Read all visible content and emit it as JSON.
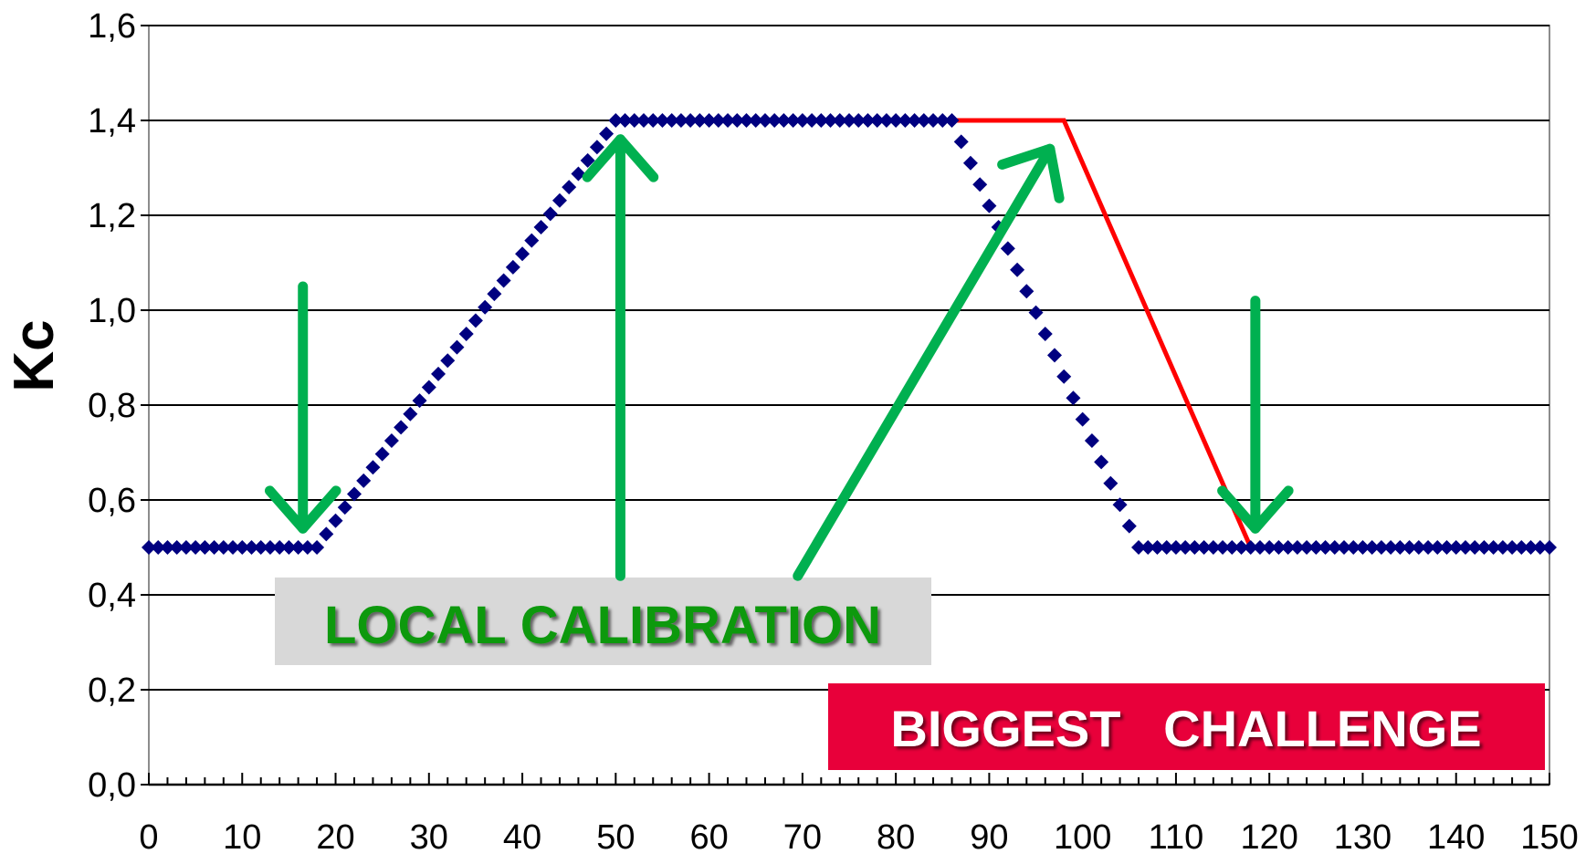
{
  "chart_data": {
    "type": "line",
    "ylabel": "Kc",
    "xlabel": "",
    "title": "",
    "xlim": [
      0,
      150
    ],
    "ylim": [
      0,
      1.6
    ],
    "x_ticks": [
      0,
      10,
      20,
      30,
      40,
      50,
      60,
      70,
      80,
      90,
      100,
      110,
      120,
      130,
      140,
      150
    ],
    "x_tick_labels": [
      "0",
      "10",
      "20",
      "30",
      "40",
      "50",
      "60",
      "70",
      "80",
      "90",
      "100",
      "110",
      "120",
      "130",
      "140",
      "150"
    ],
    "y_ticks": [
      0,
      0.2,
      0.4,
      0.6,
      0.8,
      1.0,
      1.2,
      1.4,
      1.6
    ],
    "y_tick_labels": [
      "0,0",
      "0,2",
      "0,4",
      "0,6",
      "0,8",
      "1,0",
      "1,2",
      "1,4",
      "1,6"
    ],
    "grid": "horizontal",
    "series": [
      {
        "style": "dotted-markers",
        "color": "#000080",
        "x": [
          0,
          18,
          50,
          86,
          106,
          150
        ],
        "y": [
          0.5,
          0.5,
          1.4,
          1.4,
          0.5,
          0.5
        ]
      },
      {
        "style": "solid-line",
        "color": "#ff0000",
        "x": [
          86,
          98,
          118
        ],
        "y": [
          1.4,
          1.4,
          0.5
        ]
      }
    ],
    "annotations": [
      {
        "text": "LOCAL CALIBRATION",
        "text_color": "#119911",
        "background": "#d8d8d8"
      },
      {
        "text": "BIGGEST   CHALLENGE",
        "text_color": "#ffffff",
        "background": "#e8003a"
      }
    ],
    "arrows": [
      {
        "color": "#00b050",
        "from": [
          16.5,
          1.05
        ],
        "to": [
          16.5,
          0.54
        ]
      },
      {
        "color": "#00b050",
        "from": [
          50.5,
          0.44
        ],
        "to": [
          50.5,
          1.36
        ]
      },
      {
        "color": "#00b050",
        "from": [
          69.5,
          0.44
        ],
        "to": [
          96.5,
          1.34
        ]
      },
      {
        "color": "#00b050",
        "from": [
          118.5,
          1.02
        ],
        "to": [
          118.5,
          0.54
        ]
      }
    ]
  }
}
